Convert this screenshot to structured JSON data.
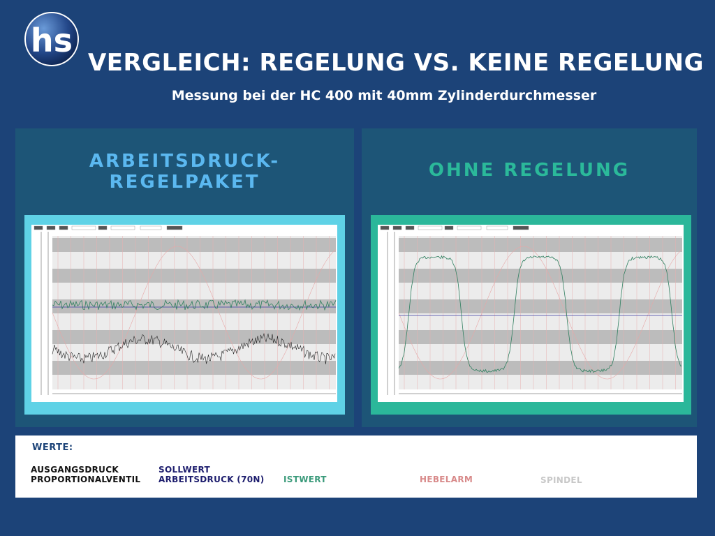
{
  "header": {
    "title": "VERGLEICH: REGELUNG VS. KEINE REGELUNG",
    "subtitle": "Messung bei der HC 400 mit 40mm Zylinderdurchmesser"
  },
  "panels": {
    "left": {
      "title_line1": "ARBEITSDRUCK-",
      "title_line2": "REGELPAKET",
      "accent": "#5bb8f0",
      "frame_color": "#5fd2e6"
    },
    "right": {
      "title": "OHNE REGELUNG",
      "accent": "#2bb99a",
      "frame_color": "#2bb79a"
    }
  },
  "legend": {
    "heading": "WERTE:",
    "items": [
      {
        "label": "AUSGANGSDRUCK\nPROPORTIONALVENTIL",
        "color": "#111111"
      },
      {
        "label": "SOLLWERT\nARBEITSDRUCK (70N)",
        "color": "#1e1e6e"
      },
      {
        "label": "ISTWERT",
        "color": "#3a9a7a"
      },
      {
        "label": "HEBELARM",
        "color": "#d88a8a"
      },
      {
        "label": "SPINDEL",
        "color": "#c8c8c8"
      }
    ]
  },
  "icons": {
    "logo": "hs-logo"
  }
}
